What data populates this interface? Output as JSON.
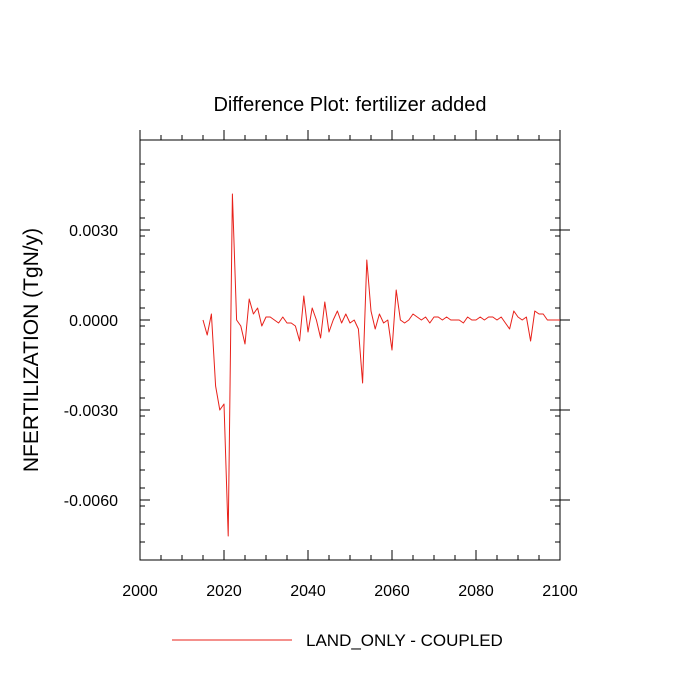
{
  "chart_data": {
    "type": "line",
    "title": "Difference Plot: fertilizer added",
    "xlabel": "",
    "ylabel": "NFERTILIZATION  (TgN/y)",
    "xlim": [
      2000,
      2100
    ],
    "ylim": [
      -0.008,
      0.006
    ],
    "x_ticks": [
      2000,
      2020,
      2040,
      2060,
      2080,
      2100
    ],
    "x_tick_labels": [
      "2000",
      "2020",
      "2040",
      "2060",
      "2080",
      "2100"
    ],
    "y_ticks": [
      -0.006,
      -0.003,
      0.0,
      0.003
    ],
    "y_tick_labels": [
      "-0.0060",
      "-0.0030",
      "0.0000",
      "0.0030"
    ],
    "legend": {
      "placement": "bottom-center"
    },
    "grid": false,
    "series": [
      {
        "name": "LAND_ONLY - COUPLED",
        "color": "#e8211a",
        "x": [
          2015,
          2016,
          2017,
          2018,
          2019,
          2020,
          2021,
          2022,
          2023,
          2024,
          2025,
          2026,
          2027,
          2028,
          2029,
          2030,
          2031,
          2032,
          2033,
          2034,
          2035,
          2036,
          2037,
          2038,
          2039,
          2040,
          2041,
          2042,
          2043,
          2044,
          2045,
          2046,
          2047,
          2048,
          2049,
          2050,
          2051,
          2052,
          2053,
          2054,
          2055,
          2056,
          2057,
          2058,
          2059,
          2060,
          2061,
          2062,
          2063,
          2064,
          2065,
          2066,
          2067,
          2068,
          2069,
          2070,
          2071,
          2072,
          2073,
          2074,
          2075,
          2076,
          2077,
          2078,
          2079,
          2080,
          2081,
          2082,
          2083,
          2084,
          2085,
          2086,
          2087,
          2088,
          2089,
          2090,
          2091,
          2092,
          2093,
          2094,
          2095,
          2096,
          2097,
          2098,
          2099,
          2100
        ],
        "values": [
          0.0,
          -0.0005,
          0.0002,
          -0.0022,
          -0.003,
          -0.0028,
          -0.0072,
          0.0042,
          0.0,
          -0.0002,
          -0.0008,
          0.0007,
          0.0002,
          0.0004,
          -0.0002,
          0.0001,
          0.0001,
          0.0,
          -0.0001,
          0.0001,
          -0.0001,
          -0.0001,
          -0.0002,
          -0.0007,
          0.0008,
          -0.0004,
          0.0004,
          0.0,
          -0.0006,
          0.0006,
          -0.0004,
          0.0,
          0.0003,
          -0.0001,
          0.0002,
          -0.0001,
          0.0,
          -0.0003,
          -0.0021,
          0.002,
          0.0003,
          -0.0003,
          0.0002,
          -0.0001,
          0.0,
          -0.001,
          0.001,
          0.0,
          -0.0001,
          0.0,
          0.0002,
          0.0001,
          0.0,
          0.0001,
          -0.0001,
          0.0001,
          0.0001,
          0.0,
          0.0001,
          0.0,
          0.0,
          0.0,
          -0.0001,
          0.0001,
          0.0,
          0.0,
          0.0001,
          0.0,
          0.0001,
          0.0001,
          0.0,
          0.0001,
          -0.0001,
          -0.0003,
          0.0003,
          0.0001,
          0.0,
          0.0001,
          -0.0007,
          0.0003,
          0.0002,
          0.0002,
          0.0,
          0.0,
          0.0,
          0.0
        ]
      }
    ]
  }
}
